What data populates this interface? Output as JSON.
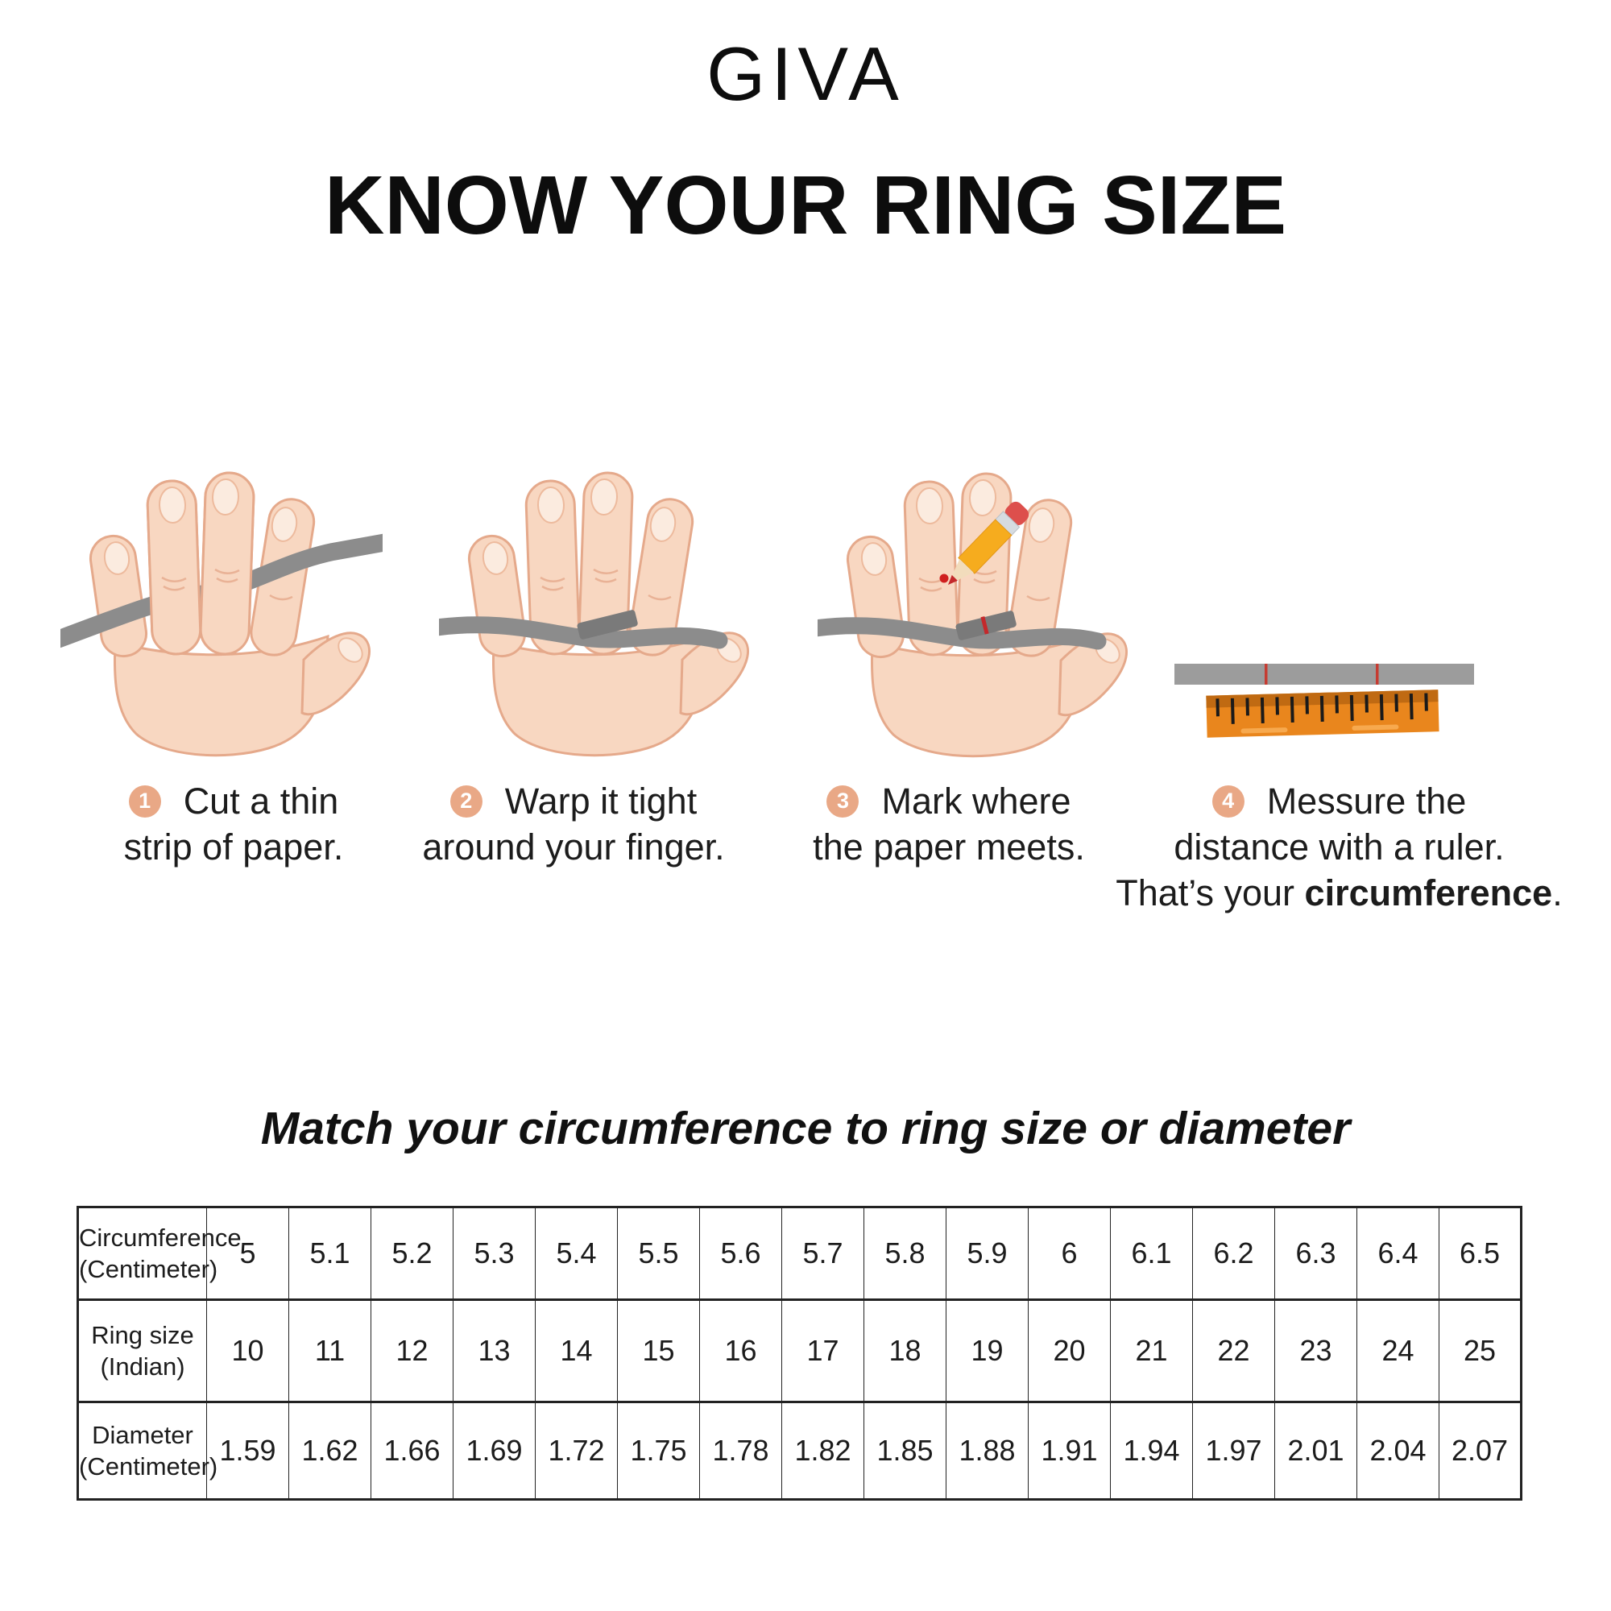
{
  "brand": "GIVA",
  "heading": "KNOW YOUR RING SIZE",
  "steps": [
    {
      "number": "1",
      "line1": "Cut a thin",
      "line2": "strip of paper."
    },
    {
      "number": "2",
      "line1": "Warp it tight",
      "line2": "around your finger."
    },
    {
      "number": "3",
      "line1": "Mark where",
      "line2": "the paper meets."
    },
    {
      "number": "4",
      "line1": "Messure the",
      "line2": "distance with a ruler.",
      "line3_prefix": "That’s your ",
      "line3_bold": "circumference",
      "line3_suffix": "."
    }
  ],
  "table_title": "Match your circumference to ring size or diameter",
  "chart_data": {
    "type": "table",
    "rows": [
      {
        "label_line1": "Circumference",
        "label_line2": "(Centimeter)",
        "values": [
          "5",
          "5.1",
          "5.2",
          "5.3",
          "5.4",
          "5.5",
          "5.6",
          "5.7",
          "5.8",
          "5.9",
          "6",
          "6.1",
          "6.2",
          "6.3",
          "6.4",
          "6.5"
        ]
      },
      {
        "label_line1": "Ring size",
        "label_line2": "(Indian)",
        "values": [
          "10",
          "11",
          "12",
          "13",
          "14",
          "15",
          "16",
          "17",
          "18",
          "19",
          "20",
          "21",
          "22",
          "23",
          "24",
          "25"
        ]
      },
      {
        "label_line1": "Diameter",
        "label_line2": "(Centimeter)",
        "values": [
          "1.59",
          "1.62",
          "1.66",
          "1.69",
          "1.72",
          "1.75",
          "1.78",
          "1.82",
          "1.85",
          "1.88",
          "1.91",
          "1.94",
          "1.97",
          "2.01",
          "2.04",
          "2.07"
        ]
      }
    ]
  },
  "icons": {
    "hand": "hand-icon",
    "paper_strip": "paper-strip-icon",
    "pencil": "pencil-icon",
    "ruler": "ruler-icon",
    "mark": "red-mark-icon"
  },
  "colors": {
    "badge": "#E9A886",
    "skin": "#F8D7C1",
    "skin_outline": "#E5A98B",
    "nail": "#FBEBDF",
    "paper_strip": "#8C8C8C",
    "ruler_body": "#E9861D",
    "ruler_band": "#C06A12",
    "mark_red": "#C4282B",
    "text": "#1C1C1C"
  }
}
